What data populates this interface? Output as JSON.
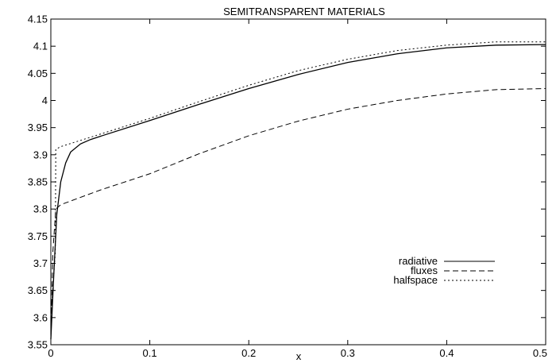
{
  "chart_data": {
    "type": "line",
    "title": "SEMITRANSPARENT MATERIALS",
    "xlabel": "x",
    "ylabel": "",
    "xlim": [
      0,
      0.5
    ],
    "ylim": [
      3.55,
      4.15
    ],
    "grid": false,
    "legend_position": "lower-right",
    "x_ticks": [
      "0",
      "0.1",
      "0.2",
      "0.3",
      "0.4",
      "0.5"
    ],
    "y_ticks": [
      "3.55",
      "3.6",
      "3.65",
      "3.7",
      "3.75",
      "3.8",
      "3.85",
      "3.9",
      "3.95",
      "4",
      "4.05",
      "4.1",
      "4.15"
    ],
    "series": [
      {
        "name": "radiative",
        "style": "solid",
        "x": [
          0,
          0.003,
          0.006,
          0.01,
          0.015,
          0.02,
          0.03,
          0.04,
          0.05,
          0.1,
          0.15,
          0.2,
          0.25,
          0.3,
          0.35,
          0.4,
          0.45,
          0.5
        ],
        "y": [
          3.56,
          3.68,
          3.79,
          3.85,
          3.885,
          3.905,
          3.92,
          3.928,
          3.934,
          3.963,
          3.993,
          4.022,
          4.048,
          4.07,
          4.086,
          4.097,
          4.102,
          4.103
        ]
      },
      {
        "name": "fluxes",
        "style": "dashed",
        "x": [
          0,
          0.002,
          0.005,
          0.01,
          0.05,
          0.1,
          0.15,
          0.2,
          0.25,
          0.3,
          0.35,
          0.4,
          0.45,
          0.5
        ],
        "y": [
          3.56,
          3.72,
          3.8,
          3.808,
          3.835,
          3.865,
          3.902,
          3.935,
          3.962,
          3.984,
          4.0,
          4.012,
          4.02,
          4.022
        ]
      },
      {
        "name": "halfspace",
        "style": "dotted",
        "x": [
          0,
          0.003,
          0.0045,
          0.005,
          0.01,
          0.05,
          0.1,
          0.15,
          0.2,
          0.25,
          0.3,
          0.35,
          0.4,
          0.45,
          0.5
        ],
        "y": [
          3.6,
          3.68,
          3.72,
          3.91,
          3.915,
          3.938,
          3.967,
          3.998,
          4.028,
          4.055,
          4.076,
          4.092,
          4.102,
          4.108,
          4.108
        ]
      }
    ]
  }
}
